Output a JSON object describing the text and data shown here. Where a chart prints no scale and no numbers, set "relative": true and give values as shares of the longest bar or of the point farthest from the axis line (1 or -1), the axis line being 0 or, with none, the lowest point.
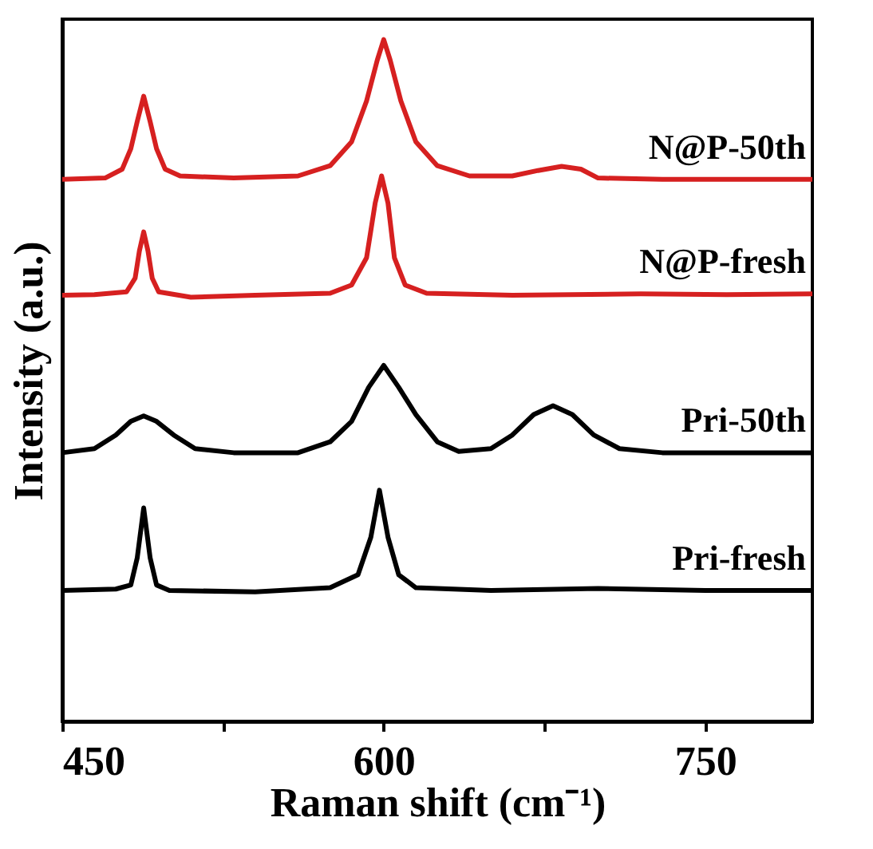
{
  "chart_data": {
    "type": "line",
    "relative": true,
    "xlabel": "Raman shift (cm⁻¹)",
    "ylabel": "Intensity (a.u.)",
    "xlim": [
      450,
      800
    ],
    "xticks": [
      450,
      {
        "value": 525,
        "label": null
      },
      600,
      {
        "value": 675,
        "label": null
      },
      750
    ],
    "grid": false,
    "marker": "none",
    "line_style": "solid",
    "series": [
      {
        "name": "N@P-50th",
        "color": "#d62020",
        "x": [
          450,
          470,
          478,
          482,
          485,
          488,
          491,
          494,
          498,
          505,
          530,
          560,
          575,
          585,
          592,
          597,
          600,
          603,
          608,
          615,
          625,
          640,
          660,
          672,
          683,
          692,
          700,
          730,
          800
        ],
        "values": [
          0.795,
          0.797,
          0.81,
          0.84,
          0.88,
          0.917,
          0.88,
          0.84,
          0.81,
          0.8,
          0.797,
          0.8,
          0.815,
          0.85,
          0.91,
          0.97,
          1.0,
          0.97,
          0.91,
          0.85,
          0.815,
          0.8,
          0.8,
          0.808,
          0.814,
          0.81,
          0.797,
          0.795,
          0.795
        ]
      },
      {
        "name": "N@P-fresh",
        "color": "#d62020",
        "x": [
          450,
          465,
          480,
          484,
          486,
          488,
          490,
          492,
          495,
          510,
          540,
          575,
          585,
          592,
          596,
          599,
          602,
          605,
          610,
          620,
          660,
          720,
          760,
          800
        ],
        "values": [
          0.625,
          0.626,
          0.63,
          0.65,
          0.69,
          0.718,
          0.69,
          0.65,
          0.63,
          0.622,
          0.625,
          0.628,
          0.64,
          0.68,
          0.76,
          0.8,
          0.76,
          0.68,
          0.64,
          0.628,
          0.625,
          0.627,
          0.626,
          0.627
        ]
      },
      {
        "name": "Pri-50th",
        "color": "#000000",
        "x": [
          450,
          465,
          475,
          482,
          488,
          494,
          502,
          512,
          530,
          560,
          575,
          585,
          593,
          600,
          607,
          615,
          625,
          635,
          650,
          660,
          670,
          679,
          688,
          698,
          710,
          730,
          800
        ],
        "values": [
          0.394,
          0.4,
          0.42,
          0.44,
          0.448,
          0.44,
          0.42,
          0.4,
          0.394,
          0.394,
          0.41,
          0.44,
          0.49,
          0.522,
          0.49,
          0.45,
          0.41,
          0.396,
          0.4,
          0.42,
          0.45,
          0.463,
          0.45,
          0.42,
          0.4,
          0.394,
          0.394
        ]
      },
      {
        "name": "Pri-fresh",
        "color": "#000000",
        "x": [
          450,
          475,
          482,
          485,
          488,
          491,
          494,
          500,
          540,
          575,
          588,
          594,
          598,
          602,
          607,
          615,
          650,
          700,
          750,
          800
        ],
        "values": [
          0.192,
          0.194,
          0.2,
          0.24,
          0.313,
          0.24,
          0.2,
          0.192,
          0.19,
          0.196,
          0.215,
          0.27,
          0.339,
          0.27,
          0.215,
          0.196,
          0.192,
          0.195,
          0.192,
          0.192
        ]
      }
    ]
  }
}
